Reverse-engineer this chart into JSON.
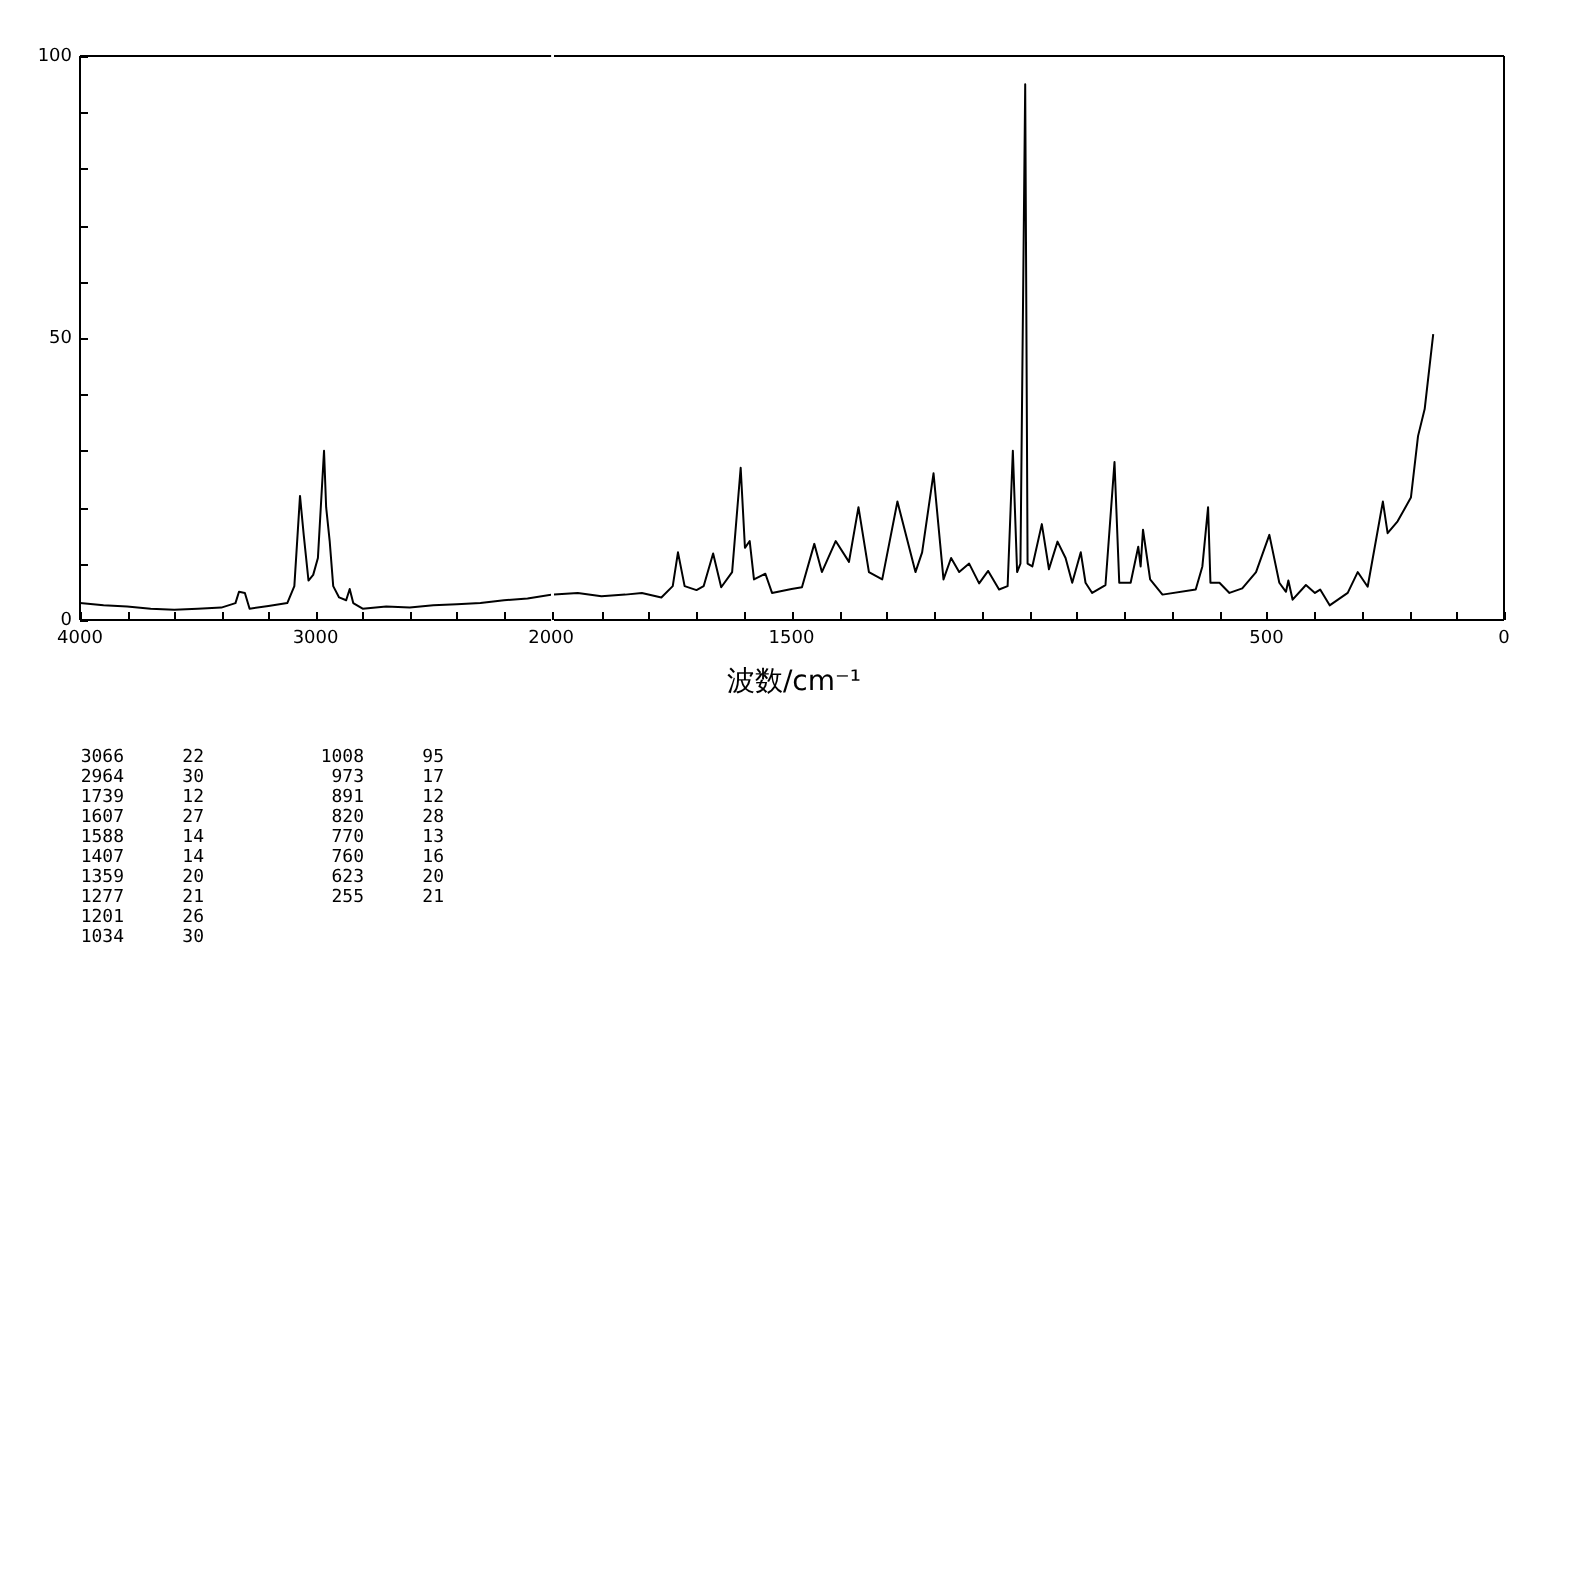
{
  "chart_data": [
    {
      "type": "line",
      "xlim": [
        4000,
        2000
      ],
      "ylim": [
        0,
        100
      ],
      "xticks": [
        4000,
        {
          "value": 3800,
          "label": null
        },
        {
          "value": 3600,
          "label": null
        },
        {
          "value": 3400,
          "label": null
        },
        {
          "value": 3200,
          "label": null
        },
        3000,
        {
          "value": 2800,
          "label": null
        },
        {
          "value": 2600,
          "label": null
        },
        {
          "value": 2400,
          "label": null
        },
        {
          "value": 2200,
          "label": null
        },
        2000
      ],
      "yticks": [
        0,
        {
          "value": 10,
          "label": null
        },
        {
          "value": 20,
          "label": null
        },
        {
          "value": 30,
          "label": null
        },
        {
          "value": 40,
          "label": null
        },
        50,
        {
          "value": 60,
          "label": null
        },
        {
          "value": 70,
          "label": null
        },
        {
          "value": 80,
          "label": null
        },
        {
          "value": 90,
          "label": null
        },
        100
      ],
      "legend": false,
      "marker": "none",
      "line_style": "solid",
      "series": [
        {
          "color": "#000000",
          "x": [
            4000,
            3900,
            3800,
            3700,
            3600,
            3500,
            3400,
            3340,
            3325,
            3300,
            3280,
            3200,
            3120,
            3090,
            3066,
            3050,
            3030,
            3010,
            2990,
            2964,
            2955,
            2940,
            2925,
            2900,
            2870,
            2855,
            2840,
            2800,
            2700,
            2600,
            2500,
            2400,
            2300,
            2200,
            2100,
            2000
          ],
          "values": [
            3,
            2.6,
            2.4,
            2,
            1.8,
            2,
            2.2,
            3,
            5,
            4.8,
            2,
            2.5,
            3,
            6,
            22,
            15,
            7,
            8,
            11,
            30,
            20,
            14,
            6,
            4,
            3.5,
            5.5,
            3,
            2,
            2.4,
            2.2,
            2.6,
            2.8,
            3,
            3.5,
            3.8,
            4.5
          ]
        }
      ],
      "annotations": [
        "3066 22",
        "2964 30",
        "1739 12",
        "1607 27",
        "1588 14",
        "1407 14",
        "1359 20",
        "1277 21",
        "1201 26",
        "1034 30",
        "1008 95",
        "973 17",
        "891 12",
        "820 28",
        "770 13",
        "760 16",
        "623 20",
        "255 21"
      ]
    },
    {
      "type": "line",
      "xlabel": "波数/cm⁻¹",
      "xlim": [
        2000,
        0
      ],
      "ylim": [
        0,
        100
      ],
      "xticks": [
        {
          "value": 1900,
          "label": null
        },
        {
          "value": 1800,
          "label": null
        },
        {
          "value": 1700,
          "label": null
        },
        {
          "value": 1600,
          "label": null
        },
        1500,
        {
          "value": 1400,
          "label": null
        },
        {
          "value": 1300,
          "label": null
        },
        {
          "value": 1200,
          "label": null
        },
        {
          "value": 1100,
          "label": null
        },
        {
          "value": 1000,
          "label": null
        },
        {
          "value": 900,
          "label": null
        },
        {
          "value": 800,
          "label": null
        },
        {
          "value": 700,
          "label": null
        },
        {
          "value": 600,
          "label": null
        },
        500,
        {
          "value": 400,
          "label": null
        },
        {
          "value": 300,
          "label": null
        },
        {
          "value": 200,
          "label": null
        },
        {
          "value": 100,
          "label": null
        },
        0
      ],
      "tick_labels": "x",
      "legend": false,
      "marker": "none",
      "line_style": "solid",
      "series": [
        {
          "color": "#000000",
          "x": [
            2000,
            1950,
            1900,
            1850,
            1815,
            1774,
            1750,
            1739,
            1725,
            1700,
            1685,
            1665,
            1648,
            1625,
            1607,
            1598,
            1588,
            1579,
            1555,
            1541,
            1500,
            1478,
            1452,
            1436,
            1407,
            1379,
            1359,
            1337,
            1309,
            1277,
            1239,
            1225,
            1201,
            1180,
            1164,
            1147,
            1126,
            1105,
            1086,
            1063,
            1045,
            1034,
            1025,
            1018,
            1008,
            1003,
            993,
            973,
            958,
            940,
            923,
            909,
            891,
            881,
            867,
            839,
            820,
            810,
            786,
            770,
            765,
            760,
            745,
            719,
            649,
            635,
            623,
            618,
            599,
            578,
            551,
            522,
            494,
            473,
            459,
            454,
            445,
            417,
            398,
            387,
            367,
            329,
            308,
            287,
            255,
            245,
            224,
            196,
            181,
            167,
            149
          ],
          "values": [
            4.5,
            4.8,
            4.2,
            4.5,
            4.8,
            4,
            6,
            12,
            6,
            5.3,
            6,
            11.8,
            5.8,
            8.5,
            27,
            12.8,
            14,
            7.2,
            8.2,
            4.8,
            5.5,
            5.8,
            13.5,
            8.5,
            14,
            10.3,
            20,
            8.5,
            7.2,
            21,
            8.5,
            12,
            26,
            7.2,
            11,
            8.5,
            10,
            6.5,
            8.7,
            5.4,
            6,
            30,
            8.5,
            10,
            95,
            10,
            9.5,
            17,
            9,
            13.9,
            11,
            6.6,
            12,
            6.6,
            4.8,
            6.2,
            28,
            6.6,
            6.6,
            13,
            9.5,
            16,
            7.2,
            4.5,
            5.4,
            9.5,
            20,
            6.6,
            6.6,
            4.8,
            5.6,
            8.5,
            15.1,
            6.6,
            5,
            7,
            3.6,
            6.2,
            4.8,
            5.4,
            2.6,
            4.8,
            8.5,
            5.9,
            21,
            15.4,
            17.5,
            21.7,
            32.6,
            37.4,
            50.7
          ]
        }
      ]
    }
  ]
}
